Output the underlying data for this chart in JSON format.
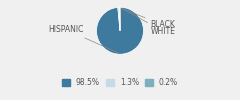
{
  "labels": [
    "HISPANIC",
    "BLACK",
    "WHITE"
  ],
  "values": [
    98.5,
    1.3,
    0.2
  ],
  "colors": [
    "#3d7a9e",
    "#c5dce8",
    "#7eafc0"
  ],
  "legend_labels": [
    "98.5%",
    "1.3%",
    "0.2%"
  ],
  "label_fontsize": 5.5,
  "legend_fontsize": 5.5,
  "background_color": "#f0f0f0"
}
